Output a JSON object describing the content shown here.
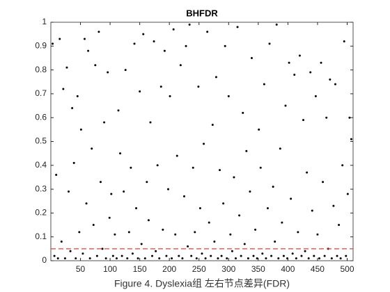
{
  "chart_data": {
    "type": "scatter",
    "title": "BHFDR",
    "caption": "Figure 4. Dyslexia组 左右节点差异(FDR)",
    "color": "#000000",
    "xlim": [
      0,
      510
    ],
    "ylim": [
      0,
      1
    ],
    "xticks": [
      50,
      100,
      150,
      200,
      250,
      300,
      350,
      400,
      450,
      500
    ],
    "yticks": [
      0,
      0.1,
      0.2,
      0.3,
      0.4,
      0.5,
      0.6,
      0.7,
      0.8,
      0.9,
      1
    ],
    "threshold": {
      "value": 0.05,
      "color": "#e8383d"
    },
    "x": [
      3,
      6,
      9,
      12,
      15,
      18,
      21,
      24,
      27,
      30,
      33,
      36,
      39,
      42,
      45,
      48,
      51,
      54,
      57,
      60,
      63,
      66,
      69,
      72,
      75,
      78,
      81,
      84,
      87,
      90,
      93,
      96,
      99,
      102,
      105,
      108,
      111,
      114,
      117,
      120,
      123,
      126,
      129,
      132,
      135,
      138,
      141,
      144,
      147,
      150,
      153,
      156,
      159,
      162,
      165,
      168,
      171,
      174,
      177,
      180,
      183,
      186,
      189,
      192,
      195,
      198,
      201,
      204,
      207,
      210,
      213,
      216,
      219,
      222,
      225,
      228,
      231,
      234,
      237,
      240,
      243,
      246,
      249,
      252,
      255,
      258,
      261,
      264,
      267,
      270,
      273,
      276,
      279,
      282,
      285,
      288,
      291,
      294,
      297,
      300,
      303,
      306,
      309,
      312,
      315,
      318,
      321,
      324,
      327,
      330,
      333,
      336,
      339,
      342,
      345,
      348,
      351,
      354,
      357,
      360,
      363,
      366,
      369,
      372,
      375,
      378,
      381,
      384,
      387,
      390,
      393,
      396,
      399,
      402,
      405,
      408,
      411,
      414,
      417,
      420,
      423,
      426,
      429,
      432,
      435,
      438,
      441,
      444,
      447,
      450,
      453,
      456,
      459,
      462,
      465,
      468,
      471,
      474,
      477,
      480,
      483,
      486,
      489,
      492,
      495,
      498,
      501,
      504,
      507
    ],
    "values": [
      0.91,
      0.02,
      0.36,
      0.01,
      0.93,
      0.08,
      0.72,
      0.01,
      0.81,
      0.29,
      0.04,
      0.64,
      0.41,
      0.01,
      0.69,
      0.12,
      0.55,
      0.03,
      0.93,
      0.24,
      0.88,
      0.01,
      0.47,
      0.15,
      0.82,
      0.02,
      0.96,
      0.33,
      0.05,
      0.58,
      0.01,
      0.79,
      0.18,
      0.28,
      0.02,
      0.11,
      0.01,
      0.63,
      0.45,
      0.02,
      0.29,
      0.8,
      0.01,
      0.12,
      0.39,
      0.03,
      0.91,
      0.22,
      0.01,
      0.71,
      0.07,
      0.95,
      0.01,
      0.33,
      0.17,
      0.58,
      0.02,
      0.92,
      0.04,
      0.4,
      0.01,
      0.73,
      0.13,
      0.88,
      0.02,
      0.3,
      0.69,
      0.01,
      0.97,
      0.11,
      0.44,
      0.02,
      0.82,
      0.01,
      0.27,
      0.9,
      0.06,
      0.99,
      0.02,
      0.39,
      0.12,
      0.01,
      0.73,
      0.22,
      0.03,
      0.49,
      0.01,
      0.96,
      0.16,
      0.02,
      0.57,
      0.08,
      0.77,
      0.01,
      0.38,
      0.02,
      0.24,
      0.9,
      0.01,
      0.69,
      0.11,
      0.04,
      0.35,
      0.01,
      0.98,
      0.19,
      0.02,
      0.62,
      0.07,
      0.46,
      0.01,
      0.29,
      0.85,
      0.02,
      0.13,
      0.01,
      0.55,
      0.39,
      0.03,
      0.74,
      0.01,
      0.22,
      0.91,
      0.02,
      0.31,
      0.08,
      0.99,
      0.01,
      0.47,
      0.16,
      0.02,
      0.65,
      0.01,
      0.83,
      0.26,
      0.03,
      0.78,
      0.01,
      0.12,
      0.86,
      0.02,
      0.59,
      0.04,
      0.37,
      0.01,
      0.79,
      0.21,
      0.02,
      0.69,
      0.11,
      0.01,
      0.83,
      0.33,
      0.02,
      0.6,
      0.05,
      0.76,
      0.01,
      0.23,
      0.74,
      0.02,
      0.15,
      0.01,
      0.4,
      0.92,
      0.02,
      0.28,
      0.6,
      0.51
    ]
  }
}
